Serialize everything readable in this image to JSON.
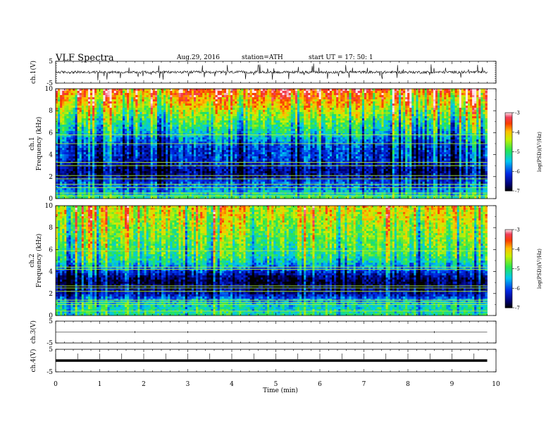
{
  "header": {
    "title": "VLF  Spectra",
    "date": "Aug.29, 2016",
    "station": "station=ATH",
    "start_ut": "start  UT =    17: 50: 1"
  },
  "chart_data": [
    {
      "type": "line",
      "name": "ch1-waveform",
      "ylabel": "ch.1(V)",
      "ylim": [
        -5,
        5
      ],
      "yticks": [
        "5",
        "-5"
      ],
      "xlim": [
        0,
        10
      ],
      "data_extent_min": 9.8,
      "baseline": 0,
      "typical_amplitude": 1,
      "spike_amplitude": 3.5
    },
    {
      "type": "heatmap",
      "name": "ch1-spectrogram",
      "ylabel": "ch.1\nFrequency  (kHz)",
      "ylabel_channel": "ch.1",
      "ylabel_freq": "Frequency  (kHz)",
      "ylim": [
        0,
        10
      ],
      "yticks": [
        "0",
        "2",
        "4",
        "6",
        "8",
        "10"
      ],
      "xlim": [
        0,
        10
      ],
      "data_extent_min": 9.8,
      "colorbar": {
        "label": "log(PSD)(V²/Hz)",
        "range": [
          -7,
          -3
        ],
        "ticks": [
          "-3",
          "-4",
          "-5",
          "-6",
          "-7"
        ]
      },
      "log_psd_profile": [
        {
          "f": 0.0,
          "v": -4.8
        },
        {
          "f": 0.5,
          "v": -5.4
        },
        {
          "f": 1.0,
          "v": -5.8
        },
        {
          "f": 1.5,
          "v": -6.0
        },
        {
          "f": 2.0,
          "v": -6.5
        },
        {
          "f": 2.5,
          "v": -6.6
        },
        {
          "f": 3.0,
          "v": -6.4
        },
        {
          "f": 3.5,
          "v": -6.2
        },
        {
          "f": 4.0,
          "v": -6.1
        },
        {
          "f": 4.5,
          "v": -6.1
        },
        {
          "f": 5.0,
          "v": -5.9
        },
        {
          "f": 5.5,
          "v": -5.6
        },
        {
          "f": 6.0,
          "v": -5.3
        },
        {
          "f": 6.5,
          "v": -5.1
        },
        {
          "f": 7.0,
          "v": -4.9
        },
        {
          "f": 7.5,
          "v": -4.6
        },
        {
          "f": 8.0,
          "v": -4.4
        },
        {
          "f": 8.5,
          "v": -4.1
        },
        {
          "f": 9.0,
          "v": -3.9
        },
        {
          "f": 9.5,
          "v": -3.6
        },
        {
          "f": 10.0,
          "v": -3.4
        }
      ],
      "narrowband_lines_khz": [
        0.25,
        0.5,
        1.0,
        1.3,
        1.8,
        2.1,
        3.0,
        3.3,
        5.0,
        5.8
      ]
    },
    {
      "type": "heatmap",
      "name": "ch2-spectrogram",
      "ylabel": "ch.2\nFrequency  (kHz)",
      "ylabel_channel": "ch.2",
      "ylabel_freq": "Frequency  (kHz)",
      "ylim": [
        0,
        10
      ],
      "yticks": [
        "0",
        "2",
        "4",
        "6",
        "8",
        "10"
      ],
      "xlim": [
        0,
        10
      ],
      "data_extent_min": 9.8,
      "colorbar": {
        "label": "log(PSD)(V²/Hz)",
        "range": [
          -7,
          -3
        ],
        "ticks": [
          "-3",
          "-4",
          "-5",
          "-6",
          "-7"
        ]
      },
      "log_psd_profile": [
        {
          "f": 0.0,
          "v": -5.1
        },
        {
          "f": 0.5,
          "v": -5.2
        },
        {
          "f": 1.0,
          "v": -5.3
        },
        {
          "f": 1.5,
          "v": -5.8
        },
        {
          "f": 2.0,
          "v": -6.4
        },
        {
          "f": 2.5,
          "v": -6.6
        },
        {
          "f": 3.0,
          "v": -6.8
        },
        {
          "f": 3.5,
          "v": -6.6
        },
        {
          "f": 4.0,
          "v": -6.1
        },
        {
          "f": 4.5,
          "v": -5.6
        },
        {
          "f": 5.0,
          "v": -5.2
        },
        {
          "f": 5.5,
          "v": -5.0
        },
        {
          "f": 6.0,
          "v": -4.9
        },
        {
          "f": 6.5,
          "v": -4.8
        },
        {
          "f": 7.0,
          "v": -4.7
        },
        {
          "f": 7.5,
          "v": -4.6
        },
        {
          "f": 8.0,
          "v": -4.5
        },
        {
          "f": 8.5,
          "v": -4.4
        },
        {
          "f": 9.0,
          "v": -4.3
        },
        {
          "f": 9.5,
          "v": -4.2
        },
        {
          "f": 10.0,
          "v": -4.1
        }
      ],
      "narrowband_lines_khz": [
        0.4,
        1.0,
        1.2,
        1.4,
        2.2,
        2.5,
        2.7,
        4.2,
        4.4,
        5.9
      ]
    },
    {
      "type": "line",
      "name": "ch3-waveform",
      "ylabel": "ch.3(V)",
      "ylim": [
        -5,
        5
      ],
      "yticks": [
        "5",
        "-5"
      ],
      "xlim": [
        0,
        10
      ],
      "data_extent_min": 9.8,
      "baseline": 0
    },
    {
      "type": "line",
      "name": "ch4-waveform",
      "ylabel": "ch.4(V)",
      "ylim": [
        -5,
        5
      ],
      "yticks": [
        "5",
        "-5"
      ],
      "xlim": [
        0,
        10
      ],
      "data_extent_min": 9.8,
      "baseline": 0,
      "marker_interval_min": 0.5
    }
  ],
  "x_axis": {
    "label": "Time  (min)",
    "ticks": [
      "0",
      "1",
      "2",
      "3",
      "4",
      "5",
      "6",
      "7",
      "8",
      "9",
      "10"
    ]
  }
}
